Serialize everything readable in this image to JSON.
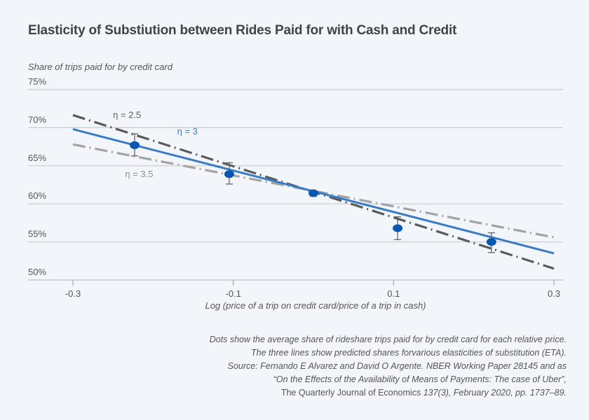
{
  "chart_data": {
    "type": "scatter",
    "title": "Elasticity of Substiution between Rides Paid for with Cash and Credit",
    "ylabel": "Share of trips paid for by credit card",
    "xlabel": "Log (price of a trip on credit card/price of a trip in cash)",
    "xlim": [
      -0.3,
      0.3
    ],
    "ylim": [
      50,
      75
    ],
    "x_ticks": [
      -0.3,
      -0.1,
      0.1,
      0.3
    ],
    "x_tick_labels": [
      "-0.3",
      "-0.1",
      "0.1",
      "0.3"
    ],
    "y_ticks": [
      50,
      55,
      60,
      65,
      70,
      75
    ],
    "y_tick_labels": [
      "50%",
      "55%",
      "60%",
      "65%",
      "70%",
      "75%"
    ],
    "grid": "horizontal",
    "points": {
      "name": "Average share",
      "color": "#0b57b0",
      "x": [
        -0.223,
        -0.105,
        0.0,
        0.105,
        0.222
      ],
      "y": [
        67.7,
        63.9,
        61.4,
        56.8,
        55.0
      ],
      "err_low": [
        66.3,
        62.6,
        61.0,
        55.3,
        53.6
      ],
      "err_high": [
        69.2,
        65.4,
        61.7,
        58.3,
        56.2
      ]
    },
    "series": [
      {
        "name": "η = 2.5",
        "style": "dash-dot",
        "color": "#5a5a5a",
        "x": [
          -0.3,
          0.3
        ],
        "y": [
          71.65,
          51.5
        ]
      },
      {
        "name": "η = 3",
        "style": "solid",
        "color": "#3a7cc4",
        "x": [
          -0.3,
          0.3
        ],
        "y": [
          69.8,
          53.5
        ]
      },
      {
        "name": "η = 3.5",
        "style": "dash-dot",
        "color": "#a3a3a3",
        "x": [
          -0.3,
          0.3
        ],
        "y": [
          67.8,
          55.6
        ]
      }
    ],
    "annotations": [
      {
        "text": "η = 2.5",
        "x": -0.25,
        "y": 71.3,
        "color": "#5a5a5a"
      },
      {
        "text": "η = 3",
        "x": -0.17,
        "y": 69.1,
        "color": "#3a7cc4"
      },
      {
        "text": "η = 3.5",
        "x": -0.235,
        "y": 63.5,
        "color": "#8f8f8f"
      }
    ]
  },
  "notes": {
    "line1": "Dots show the average share of rideshare trips paid for by credit card for each relative price.",
    "line2": "The three lines show predicted shares forvarious elasticities of substitution (ETA).",
    "line3": "Source: Fernando E Alvarez and David O Argente. NBER Working Paper 28145 and as",
    "line4": "“On the Effects of the Availability of Means of Payments: The case of Uber”,",
    "line5_plain": "The Quarterly Journal of Economics ",
    "line5_italic": "137(3), February 2020, pp. 1737–89."
  }
}
